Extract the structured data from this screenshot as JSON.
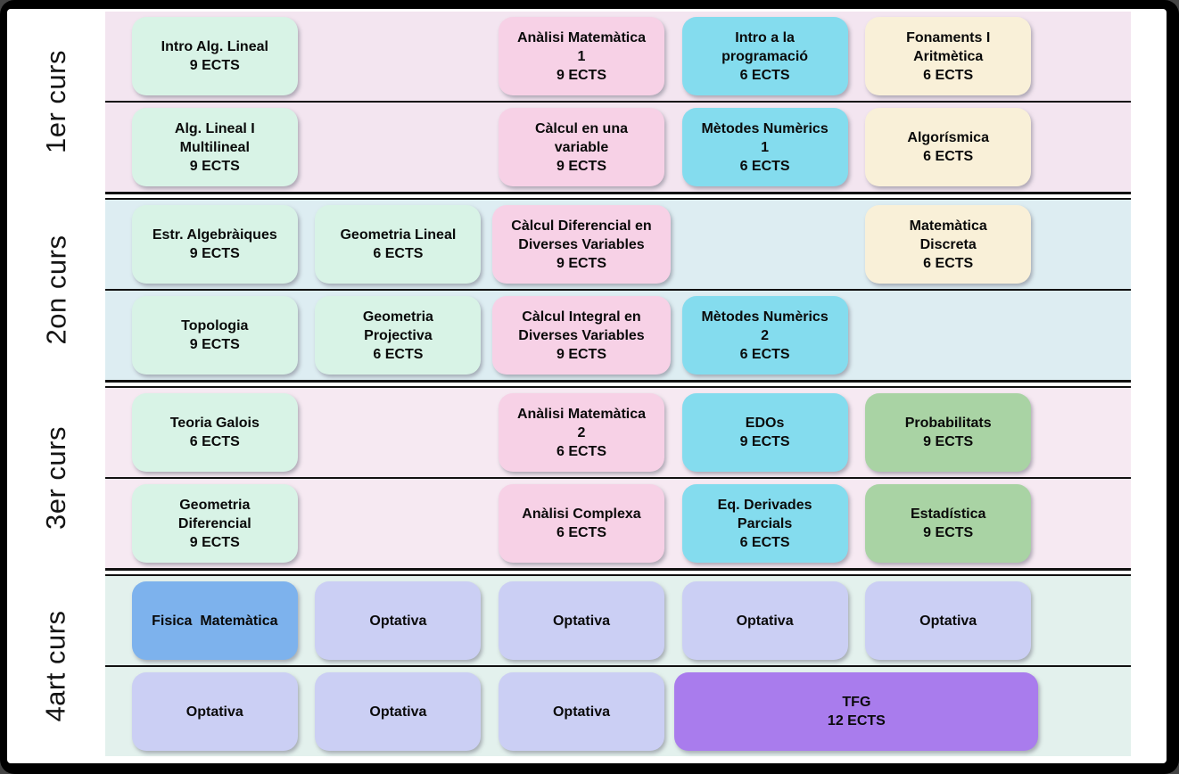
{
  "palette": {
    "mint": "#d8f3e6",
    "pink": "#f7d1e6",
    "cyan": "#84dcee",
    "cream": "#f9f0d8",
    "green": "#a9d3a4",
    "lavender": "#cbcff4",
    "blue": "#7db2ed",
    "purple": "#a97ced",
    "frame": "#000000",
    "separator": "#111111"
  },
  "sections": [
    {
      "id": "1er-curs",
      "label": "1er curs",
      "bg": "#f3e5f0",
      "rows": [
        [
          {
            "col": 1,
            "color": "mint",
            "lines": [
              "Intro Alg. Lineal",
              "9 ECTS"
            ]
          },
          {
            "col": 3,
            "color": "pink",
            "lines": [
              "Anàlisi Matemàtica",
              "1",
              "9 ECTS"
            ]
          },
          {
            "col": 4,
            "color": "cyan",
            "lines": [
              "Intro a la",
              "programació",
              "6 ECTS"
            ]
          },
          {
            "col": 5,
            "color": "cream",
            "lines": [
              "Fonaments I",
              "Aritmètica",
              "6 ECTS"
            ]
          }
        ],
        [
          {
            "col": 1,
            "color": "mint",
            "lines": [
              "Alg. Lineal I",
              "Multilineal",
              "9 ECTS"
            ]
          },
          {
            "col": 3,
            "color": "pink",
            "lines": [
              "Càlcul en una",
              "variable",
              "9 ECTS"
            ]
          },
          {
            "col": 4,
            "color": "cyan",
            "lines": [
              "Mètodes Numèrics",
              "1",
              "6 ECTS"
            ]
          },
          {
            "col": 5,
            "color": "cream",
            "lines": [
              "Algorísmica",
              "6 ECTS"
            ]
          }
        ]
      ]
    },
    {
      "id": "2on-curs",
      "label": "2on curs",
      "bg": "#ddedf2",
      "rows": [
        [
          {
            "col": 1,
            "color": "mint",
            "lines": [
              "Estr. Algebràiques",
              "9 ECTS"
            ]
          },
          {
            "col": 2,
            "color": "mint",
            "lines": [
              "Geometria Lineal",
              "6 ECTS"
            ]
          },
          {
            "col": 3,
            "color": "pink",
            "wide": true,
            "lines": [
              "Càlcul Diferencial en",
              "Diverses Variables",
              "9 ECTS"
            ]
          },
          {
            "col": 5,
            "color": "cream",
            "lines": [
              "Matemàtica",
              "Discreta",
              "6 ECTS"
            ]
          }
        ],
        [
          {
            "col": 1,
            "color": "mint",
            "lines": [
              "Topologia",
              "9 ECTS"
            ]
          },
          {
            "col": 2,
            "color": "mint",
            "lines": [
              "Geometria",
              "Projectiva",
              "6 ECTS"
            ]
          },
          {
            "col": 3,
            "color": "pink",
            "wide": true,
            "lines": [
              "Càlcul Integral en",
              "Diverses Variables",
              "9 ECTS"
            ]
          },
          {
            "col": 4,
            "color": "cyan",
            "lines": [
              "Mètodes Numèrics",
              "2",
              "6 ECTS"
            ]
          }
        ]
      ]
    },
    {
      "id": "3er-curs",
      "label": "3er curs",
      "bg": "#f6e9f2",
      "rows": [
        [
          {
            "col": 1,
            "color": "mint",
            "lines": [
              "Teoria Galois",
              "6 ECTS"
            ]
          },
          {
            "col": 3,
            "color": "pink",
            "lines": [
              "Anàlisi Matemàtica",
              "2",
              "6 ECTS"
            ]
          },
          {
            "col": 4,
            "color": "cyan",
            "lines": [
              "EDOs",
              "9 ECTS"
            ]
          },
          {
            "col": 5,
            "color": "green",
            "lines": [
              "Probabilitats",
              "9 ECTS"
            ]
          }
        ],
        [
          {
            "col": 1,
            "color": "mint",
            "lines": [
              "Geometria",
              "Diferencial",
              "9 ECTS"
            ]
          },
          {
            "col": 3,
            "color": "pink",
            "lines": [
              "Anàlisi Complexa",
              "6 ECTS"
            ]
          },
          {
            "col": 4,
            "color": "cyan",
            "lines": [
              "Eq. Derivades",
              "Parcials",
              "6 ECTS"
            ]
          },
          {
            "col": 5,
            "color": "green",
            "lines": [
              "Estadística",
              "9 ECTS"
            ]
          }
        ]
      ]
    },
    {
      "id": "4art-curs",
      "label": "4art curs",
      "bg": "#e3f1ed",
      "rows": [
        [
          {
            "col": 1,
            "color": "blue",
            "lines": [
              "Fisica  Matemàtica"
            ]
          },
          {
            "col": 2,
            "color": "lavender",
            "lines": [
              "Optativa"
            ]
          },
          {
            "col": 3,
            "color": "lavender",
            "lines": [
              "Optativa"
            ]
          },
          {
            "col": 4,
            "color": "lavender",
            "lines": [
              "Optativa"
            ]
          },
          {
            "col": 5,
            "color": "lavender",
            "lines": [
              "Optativa"
            ]
          }
        ],
        [
          {
            "col": 1,
            "color": "lavender",
            "lines": [
              "Optativa"
            ]
          },
          {
            "col": 2,
            "color": "lavender",
            "lines": [
              "Optativa"
            ]
          },
          {
            "col": 3,
            "color": "lavender",
            "lines": [
              "Optativa"
            ]
          },
          {
            "col": 4,
            "span": 2,
            "color": "purple",
            "lines": [
              "TFG",
              "12 ECTS"
            ]
          }
        ]
      ]
    }
  ]
}
